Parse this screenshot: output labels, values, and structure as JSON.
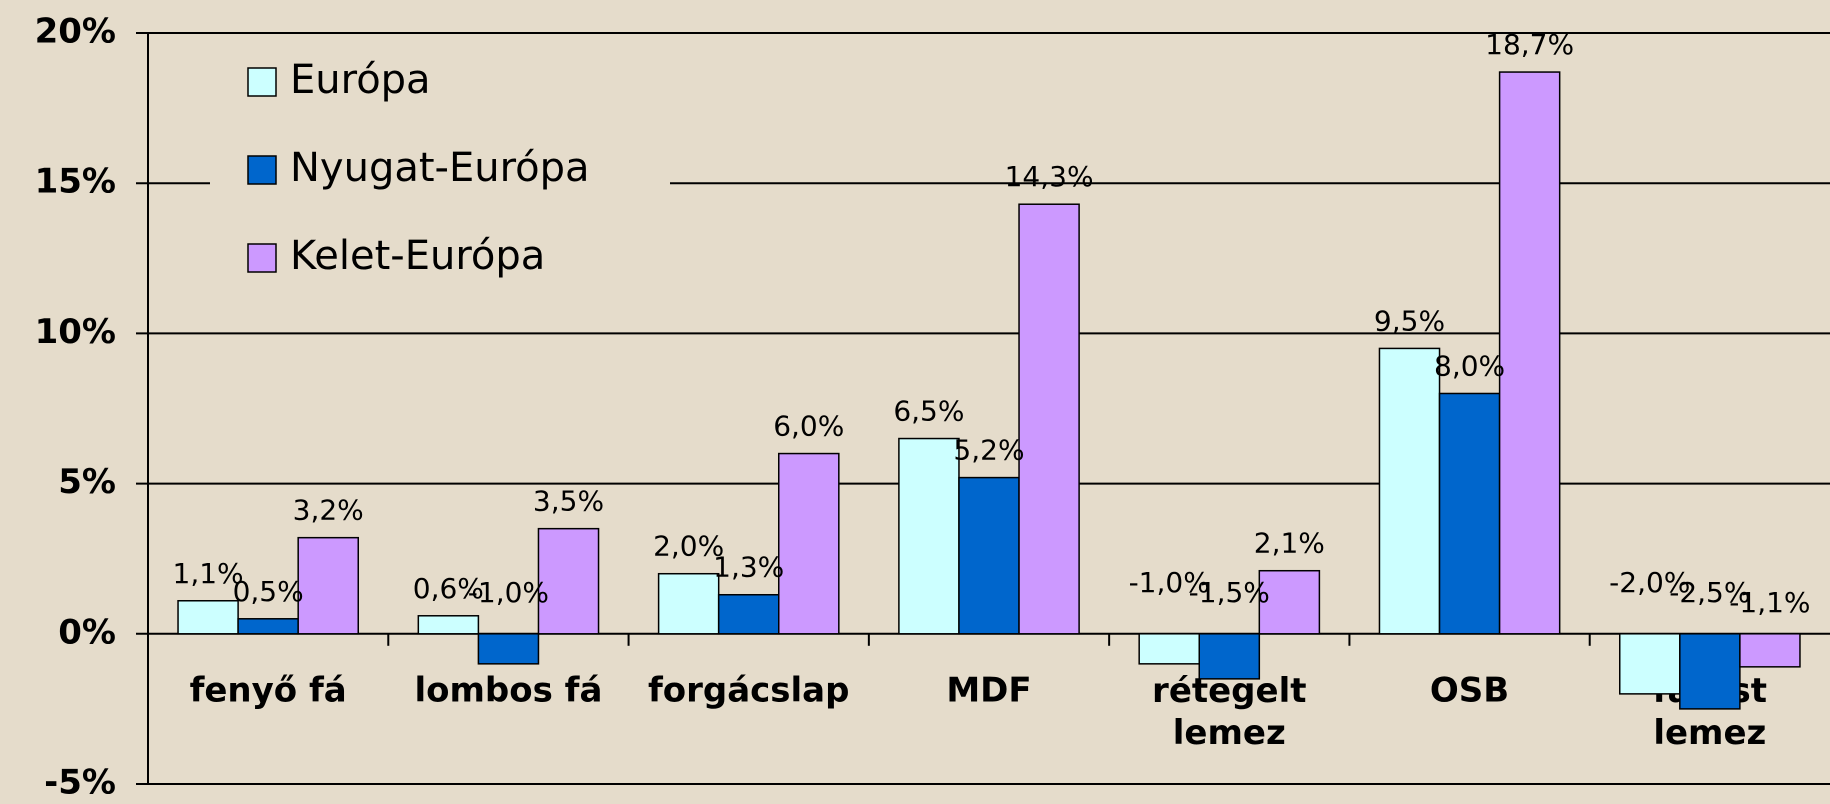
{
  "chart_data": {
    "type": "bar",
    "categories": [
      "fenyő fá",
      "lombos fá",
      "forgácslap",
      "MDF",
      "rétegelt\nlemez",
      "OSB",
      "farost\nlemez"
    ],
    "series": [
      {
        "name": "Európa",
        "color": "#ccffff",
        "values": [
          1.1,
          0.6,
          2.0,
          6.5,
          -1.0,
          9.5,
          -2.0
        ],
        "value_labels": [
          "1,1%",
          "0,6%",
          "2,0%",
          "6,5%",
          "-1,0%",
          "9,5%",
          "-2,0%"
        ]
      },
      {
        "name": "Nyugat-Európa",
        "color": "#0066cc",
        "values": [
          0.5,
          -1.0,
          1.3,
          5.2,
          -1.5,
          8.0,
          -2.5
        ],
        "value_labels": [
          "0,5%",
          "-1,0%",
          "1,3%",
          "5,2%",
          "-1,5%",
          "8,0%",
          "-2,5%"
        ]
      },
      {
        "name": "Kelet-Európa",
        "color": "#cc99ff",
        "values": [
          3.2,
          3.5,
          6.0,
          14.3,
          2.1,
          18.7,
          -1.1
        ],
        "value_labels": [
          "3,2%",
          "3,5%",
          "6,0%",
          "14,3%",
          "2,1%",
          "18,7%",
          "-1,1%"
        ]
      }
    ],
    "ylim": [
      -5,
      20
    ],
    "yticks": [
      {
        "value": -5,
        "label": "-5%"
      },
      {
        "value": 0,
        "label": "0%"
      },
      {
        "value": 5,
        "label": "5%"
      },
      {
        "value": 10,
        "label": "10%"
      },
      {
        "value": 15,
        "label": "15%"
      },
      {
        "value": 20,
        "label": "20%"
      }
    ],
    "grid": true,
    "legend": "upper left"
  }
}
